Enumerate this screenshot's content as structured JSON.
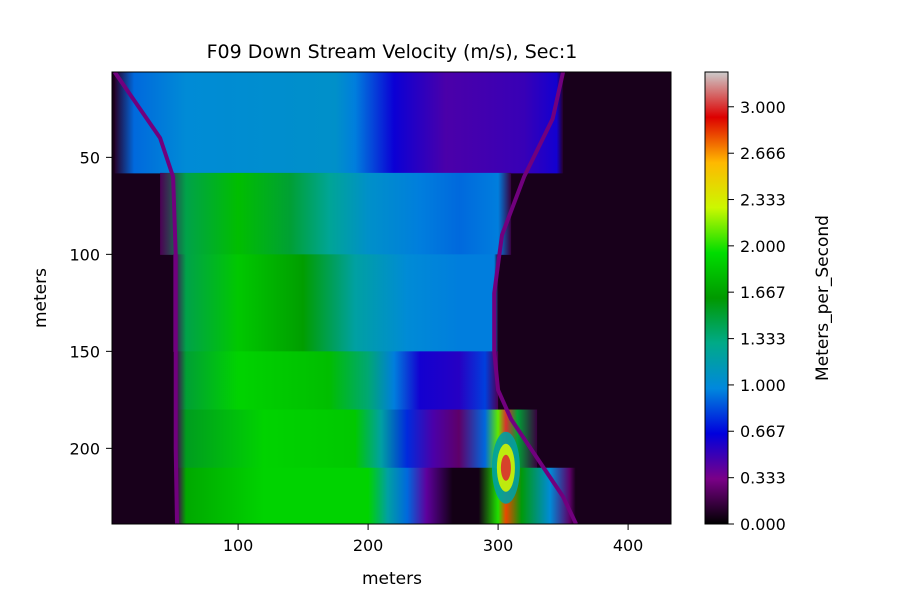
{
  "chart_data": {
    "type": "heatmap",
    "title": "F09 Down Stream Velocity (m/s), Sec:1",
    "xlabel": "meters",
    "ylabel": "meters",
    "colorbar_label": "Meters_per_Second",
    "xlim": [
      3,
      433
    ],
    "ylim": [
      239,
      6
    ],
    "y_inverted": true,
    "x_ticks": [
      100,
      200,
      300,
      400
    ],
    "y_ticks": [
      50,
      100,
      150,
      200
    ],
    "colorbar_range": [
      0,
      3.25
    ],
    "colorbar_ticks": [
      "0.000",
      "0.333",
      "0.667",
      "1.000",
      "1.333",
      "1.667",
      "2.000",
      "2.333",
      "2.666",
      "3.000"
    ],
    "colormap": "nipy_spectral",
    "colormap_stops": [
      {
        "v": 0.0,
        "color": "#000000"
      },
      {
        "v": 0.1,
        "color": "#7a0088"
      },
      {
        "v": 0.2,
        "color": "#0000dd"
      },
      {
        "v": 0.3,
        "color": "#0088dd"
      },
      {
        "v": 0.4,
        "color": "#00aa88"
      },
      {
        "v": 0.5,
        "color": "#009900"
      },
      {
        "v": 0.6,
        "color": "#00dd00"
      },
      {
        "v": 0.7,
        "color": "#ccf800"
      },
      {
        "v": 0.8,
        "color": "#ffb800"
      },
      {
        "v": 0.9,
        "color": "#dd0000"
      },
      {
        "v": 1.0,
        "color": "#cccccc"
      }
    ],
    "left_bank": [
      [
        6,
        5
      ],
      [
        40,
        40
      ],
      [
        60,
        50
      ],
      [
        100,
        52
      ],
      [
        150,
        52
      ],
      [
        200,
        52
      ],
      [
        239,
        53
      ]
    ],
    "right_bank": [
      [
        6,
        350
      ],
      [
        30,
        342
      ],
      [
        60,
        320
      ],
      [
        90,
        303
      ],
      [
        120,
        297
      ],
      [
        150,
        297
      ],
      [
        170,
        300
      ],
      [
        185,
        310
      ],
      [
        205,
        330
      ],
      [
        225,
        350
      ],
      [
        239,
        360
      ]
    ],
    "cells": [
      {
        "y": [
          6,
          58
        ],
        "row": [
          [
            5,
            0.1
          ],
          [
            20,
            0.9
          ],
          [
            60,
            1.0
          ],
          [
            175,
            1.05
          ],
          [
            190,
            0.95
          ],
          [
            220,
            0.62
          ],
          [
            260,
            0.45
          ],
          [
            320,
            0.5
          ],
          [
            345,
            0.6
          ],
          [
            350,
            0.1
          ]
        ]
      },
      {
        "y": [
          58,
          100
        ],
        "row": [
          [
            40,
            0.2
          ],
          [
            60,
            1.45
          ],
          [
            100,
            1.8
          ],
          [
            140,
            1.5
          ],
          [
            170,
            1.25
          ],
          [
            200,
            1.05
          ],
          [
            240,
            0.95
          ],
          [
            270,
            0.9
          ],
          [
            300,
            0.95
          ],
          [
            310,
            0.15
          ]
        ]
      },
      {
        "y": [
          100,
          150
        ],
        "row": [
          [
            50,
            0.2
          ],
          [
            60,
            1.45
          ],
          [
            100,
            1.85
          ],
          [
            150,
            1.65
          ],
          [
            190,
            1.2
          ],
          [
            230,
            1.0
          ],
          [
            270,
            0.95
          ],
          [
            297,
            0.95
          ],
          [
            300,
            0.1
          ]
        ]
      },
      {
        "y": [
          150,
          180
        ],
        "row": [
          [
            52,
            0.2
          ],
          [
            60,
            1.5
          ],
          [
            100,
            1.9
          ],
          [
            170,
            1.8
          ],
          [
            200,
            1.35
          ],
          [
            220,
            0.95
          ],
          [
            240,
            0.6
          ],
          [
            270,
            0.55
          ],
          [
            290,
            0.8
          ],
          [
            300,
            0.2
          ]
        ]
      },
      {
        "y": [
          180,
          210
        ],
        "row": [
          [
            52,
            0.2
          ],
          [
            60,
            1.55
          ],
          [
            120,
            1.9
          ],
          [
            190,
            1.85
          ],
          [
            210,
            1.2
          ],
          [
            230,
            0.75
          ],
          [
            250,
            0.45
          ],
          [
            270,
            0.25
          ],
          [
            290,
            0.9
          ],
          [
            300,
            2.1
          ],
          [
            306,
            3.0
          ],
          [
            315,
            1.5
          ],
          [
            330,
            0.15
          ]
        ]
      },
      {
        "y": [
          210,
          239
        ],
        "row": [
          [
            53,
            0.2
          ],
          [
            60,
            1.7
          ],
          [
            120,
            1.9
          ],
          [
            200,
            1.9
          ],
          [
            215,
            1.2
          ],
          [
            230,
            0.9
          ],
          [
            245,
            0.4
          ],
          [
            265,
            0.05
          ],
          [
            285,
            0.05
          ],
          [
            300,
            2.0
          ],
          [
            306,
            2.8
          ],
          [
            318,
            1.6
          ],
          [
            340,
            1.0
          ],
          [
            355,
            0.25
          ],
          [
            360,
            0.05
          ]
        ]
      }
    ],
    "hotspot": {
      "x": 306,
      "y": 210,
      "value": 3.0
    }
  }
}
